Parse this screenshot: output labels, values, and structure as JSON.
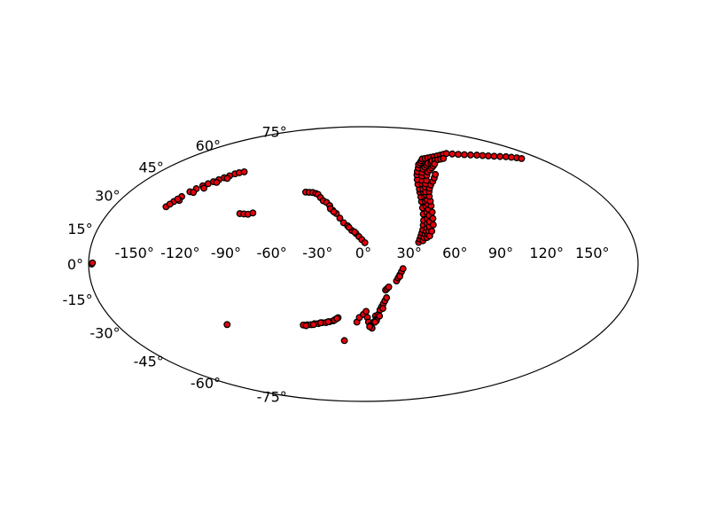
{
  "chart_data": {
    "type": "scatter",
    "projection": "aitoff",
    "title": "",
    "xlabel": "",
    "ylabel": "",
    "grid": false,
    "legend": "none",
    "xlim": [
      -180,
      180
    ],
    "ylim": [
      -90,
      90
    ],
    "x_ticks": [
      -150,
      -120,
      -90,
      -60,
      -30,
      0,
      30,
      60,
      90,
      120,
      150
    ],
    "x_tick_labels": [
      "-150°",
      "-120°",
      "-90°",
      "-60°",
      "-30°",
      "0°",
      "30°",
      "60°",
      "90°",
      "120°",
      "150°"
    ],
    "y_ticks": [
      -75,
      -60,
      -45,
      -30,
      -15,
      0,
      15,
      30,
      45,
      60,
      75
    ],
    "y_tick_labels": [
      "-75°",
      "-60°",
      "-45°",
      "-30°",
      "-15°",
      "0°",
      "15°",
      "30°",
      "45°",
      "60°",
      "75°"
    ],
    "colors": {
      "marker_face": "#e8000b",
      "marker_edge": "#000000",
      "frame": "#000000"
    },
    "point_groups": [
      {
        "points": [
          [
            -145,
            29
          ],
          [
            -143,
            32
          ],
          [
            -141,
            35
          ],
          [
            -139,
            38
          ],
          [
            -137,
            40
          ],
          [
            -135,
            42
          ],
          [
            -133,
            43.5
          ],
          [
            -131,
            45
          ],
          [
            -129,
            46.5
          ],
          [
            -127,
            48
          ],
          [
            -125,
            49.5
          ],
          [
            -123,
            51
          ],
          [
            -121,
            52
          ],
          [
            -118,
            53
          ],
          [
            -140,
            33
          ],
          [
            -136,
            38
          ],
          [
            -132,
            41
          ],
          [
            -128,
            45
          ],
          [
            -124,
            48
          ],
          [
            -144,
            30.5
          ],
          [
            -142,
            33.5
          ]
        ]
      },
      {
        "points": [
          [
            -90,
            30
          ],
          [
            -87,
            30
          ],
          [
            -84,
            30
          ],
          [
            -81,
            31
          ]
        ]
      },
      {
        "points": [
          [
            -49,
            46
          ],
          [
            -46,
            46
          ],
          [
            -43,
            46
          ],
          [
            -40,
            45.5
          ],
          [
            -38,
            45
          ],
          [
            -35,
            43
          ],
          [
            -32,
            41
          ],
          [
            -29,
            40
          ],
          [
            -26,
            38
          ],
          [
            -23,
            35
          ],
          [
            -20,
            33
          ],
          [
            -17,
            30
          ],
          [
            -14,
            27
          ],
          [
            -11,
            25
          ],
          [
            -8,
            22
          ],
          [
            -5,
            20
          ],
          [
            -3,
            18
          ],
          [
            -1,
            16
          ],
          [
            1,
            14
          ],
          [
            -25,
            36
          ],
          [
            -22,
            34
          ],
          [
            -10,
            24
          ],
          [
            -6,
            21
          ]
        ]
      },
      {
        "points": [
          [
            -178,
            0
          ],
          [
            -177.5,
            0.5
          ]
        ]
      },
      {
        "points": [
          [
            -104,
            -35
          ]
        ]
      },
      {
        "points": [
          [
            -47,
            -39
          ],
          [
            -44,
            -39
          ],
          [
            -41,
            -39
          ],
          [
            -38,
            -38.5
          ],
          [
            -35,
            -38.5
          ],
          [
            -32,
            -38
          ],
          [
            -29,
            -38
          ],
          [
            -26,
            -37.5
          ],
          [
            -23,
            -37
          ],
          [
            -21,
            -36
          ],
          [
            -19,
            -35
          ],
          [
            -45,
            -39.5
          ],
          [
            -39,
            -39
          ],
          [
            -33,
            -38
          ],
          [
            -27,
            -37.5
          ],
          [
            -22,
            -36.5
          ],
          [
            -20,
            -35.5
          ]
        ]
      },
      {
        "points": [
          [
            -17,
            -50
          ]
        ]
      },
      {
        "points": [
          [
            -5,
            -38
          ],
          [
            -3,
            -35
          ],
          [
            0,
            -33
          ],
          [
            2,
            -31
          ],
          [
            3,
            -35
          ],
          [
            4,
            -38
          ],
          [
            6,
            -40
          ],
          [
            7,
            -42
          ],
          [
            8,
            -38
          ],
          [
            9,
            -34
          ],
          [
            10,
            -36
          ],
          [
            11,
            -33
          ],
          [
            12,
            -30
          ],
          [
            13,
            -28
          ],
          [
            14,
            -26
          ],
          [
            15,
            -24
          ],
          [
            16,
            -22
          ],
          [
            5,
            -41
          ],
          [
            10,
            -37
          ],
          [
            14,
            -29
          ],
          [
            12,
            -34
          ],
          [
            9,
            -38
          ]
        ]
      },
      {
        "points": [
          [
            15,
            -17
          ],
          [
            16,
            -16
          ],
          [
            17,
            -15
          ]
        ]
      },
      {
        "points": [
          [
            22,
            -11
          ],
          [
            23,
            -9
          ],
          [
            24,
            -7
          ],
          [
            25,
            -5
          ],
          [
            26,
            -3
          ],
          [
            24,
            -8
          ]
        ]
      },
      {
        "points": [
          [
            37,
            14
          ],
          [
            38,
            16
          ],
          [
            39,
            18
          ],
          [
            40,
            20
          ],
          [
            41,
            22
          ],
          [
            42,
            25
          ],
          [
            43,
            28
          ],
          [
            44,
            32
          ],
          [
            45,
            36
          ],
          [
            46,
            40
          ],
          [
            47,
            43
          ],
          [
            48,
            46
          ],
          [
            49,
            48
          ],
          [
            50,
            51
          ],
          [
            52,
            54
          ],
          [
            55,
            57
          ],
          [
            58,
            59
          ],
          [
            62,
            61
          ],
          [
            66,
            63
          ],
          [
            70,
            64
          ],
          [
            74,
            65
          ],
          [
            78,
            66
          ],
          [
            82,
            66
          ],
          [
            86,
            66
          ],
          [
            90,
            66
          ],
          [
            95,
            66
          ],
          [
            100,
            66
          ],
          [
            105,
            66
          ],
          [
            110,
            66
          ],
          [
            115,
            66
          ],
          [
            120,
            65
          ],
          [
            125,
            64
          ],
          [
            130,
            63
          ],
          [
            135,
            62
          ],
          [
            140,
            61
          ],
          [
            144,
            60
          ],
          [
            148,
            59
          ],
          [
            152,
            58
          ],
          [
            156,
            57
          ],
          [
            160,
            56
          ],
          [
            163,
            55
          ],
          [
            166,
            54
          ],
          [
            168,
            53
          ]
        ]
      },
      {
        "points": [
          [
            40,
            15
          ],
          [
            41,
            17
          ],
          [
            42,
            19
          ],
          [
            43,
            21
          ],
          [
            44,
            23
          ],
          [
            45,
            26
          ],
          [
            46,
            29
          ],
          [
            47,
            33
          ],
          [
            48,
            37
          ],
          [
            49,
            40
          ],
          [
            50,
            43
          ],
          [
            51,
            46
          ],
          [
            52,
            48
          ],
          [
            54,
            51
          ],
          [
            56,
            53
          ],
          [
            59,
            56
          ],
          [
            62,
            58
          ],
          [
            66,
            60
          ],
          [
            70,
            61
          ],
          [
            74,
            62
          ],
          [
            78,
            63
          ],
          [
            82,
            63
          ],
          [
            86,
            64
          ],
          [
            90,
            64
          ],
          [
            94,
            64
          ],
          [
            98,
            64
          ],
          [
            102,
            64
          ]
        ]
      },
      {
        "points": [
          [
            43,
            17
          ],
          [
            44,
            19
          ],
          [
            45,
            21
          ],
          [
            46,
            24
          ],
          [
            47,
            27
          ],
          [
            48,
            31
          ],
          [
            49,
            35
          ],
          [
            50,
            38
          ],
          [
            51,
            41
          ],
          [
            52,
            44
          ],
          [
            53,
            46
          ],
          [
            55,
            49
          ],
          [
            57,
            51
          ],
          [
            60,
            53
          ],
          [
            64,
            56
          ],
          [
            68,
            58
          ],
          [
            72,
            59
          ],
          [
            76,
            60
          ],
          [
            80,
            61
          ],
          [
            84,
            62
          ]
        ]
      },
      {
        "points": [
          [
            45,
            18
          ],
          [
            47,
            21
          ],
          [
            49,
            25
          ],
          [
            50,
            29
          ],
          [
            51,
            33
          ],
          [
            52,
            37
          ],
          [
            53,
            40
          ],
          [
            54,
            43
          ],
          [
            56,
            46
          ],
          [
            58,
            48
          ],
          [
            61,
            50
          ],
          [
            65,
            52
          ],
          [
            69,
            54
          ],
          [
            73,
            56
          ]
        ]
      }
    ]
  }
}
